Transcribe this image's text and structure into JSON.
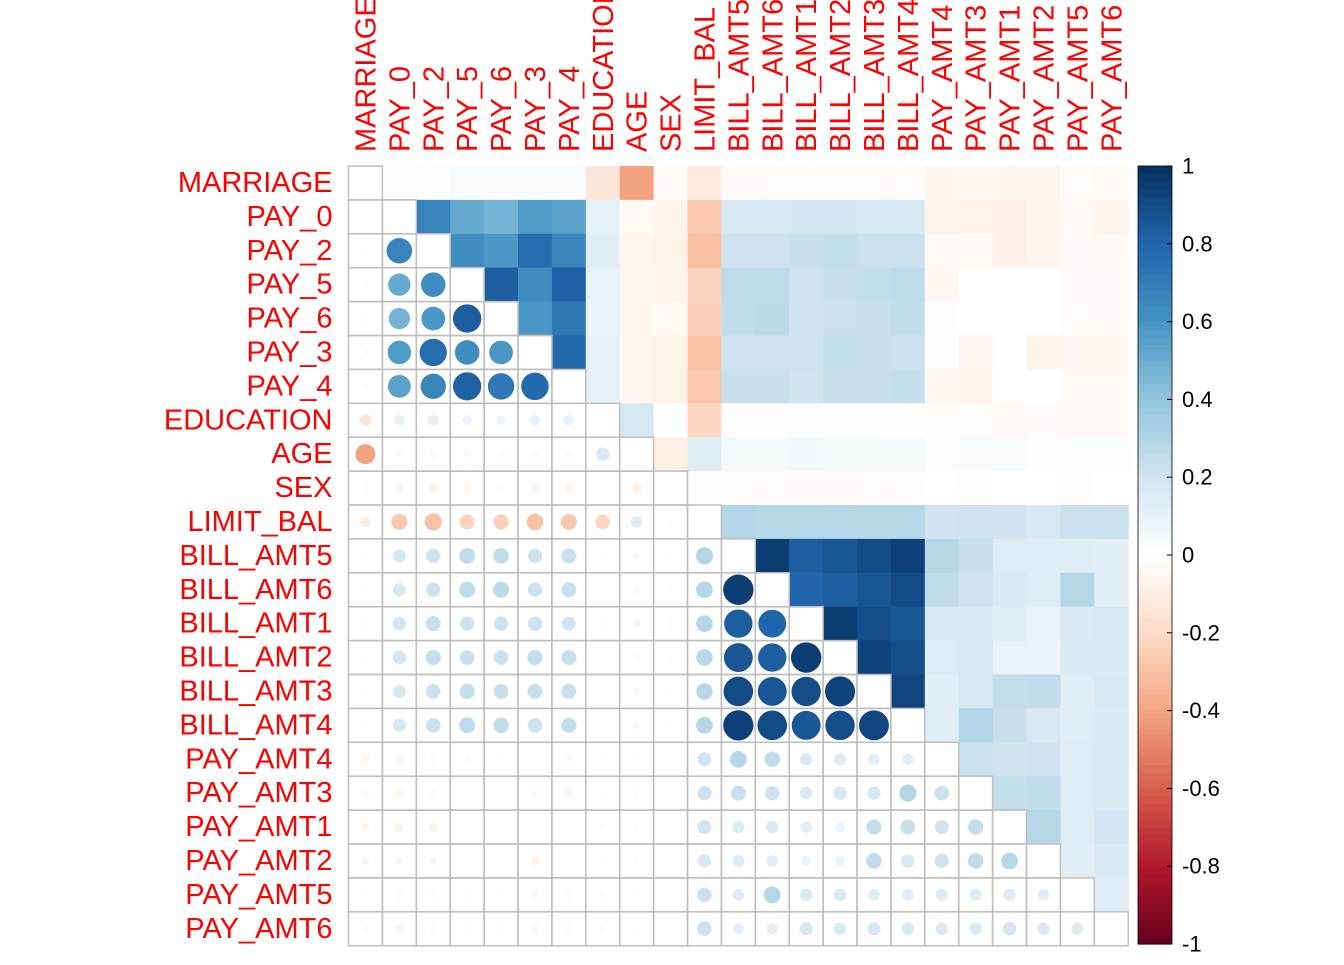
{
  "chart_data": {
    "type": "heatmap",
    "subtype": "correlation matrix: circles below diagonal, filled squares above diagonal",
    "variables": [
      "MARRIAGE",
      "PAY_0",
      "PAY_2",
      "PAY_5",
      "PAY_6",
      "PAY_3",
      "PAY_4",
      "EDUCATION",
      "AGE",
      "SEX",
      "LIMIT_BAL",
      "BILL_AMT5",
      "BILL_AMT6",
      "BILL_AMT1",
      "BILL_AMT2",
      "BILL_AMT3",
      "BILL_AMT4",
      "PAY_AMT4",
      "PAY_AMT3",
      "PAY_AMT1",
      "PAY_AMT2",
      "PAY_AMT5",
      "PAY_AMT6"
    ],
    "column_labels": [
      "MARRIAGE",
      "PAY_0",
      "PAY_2",
      "PAY_5",
      "PAY_6",
      "PAY_3",
      "PAY_4",
      "EDUCATION",
      "AGE",
      "SEX",
      "LIMIT_BAL",
      "BILL_AMT5",
      "BILL_AMT6",
      "BILL_AMT1",
      "BILL_AMT2",
      "BILL_AMT3",
      "BILL_AMT4",
      "PAY_AMT4",
      "PAY_AMT3",
      "PAY_AMT1",
      "PAY_AMT2",
      "PAY_AMT5",
      "PAY_AMT6"
    ],
    "lower_triangle": [
      [],
      [
        0.01
      ],
      [
        0.02,
        0.67
      ],
      [
        0.03,
        0.51,
        0.62
      ],
      [
        0.03,
        0.47,
        0.58,
        0.83
      ],
      [
        0.03,
        0.57,
        0.77,
        0.62,
        0.58
      ],
      [
        0.03,
        0.54,
        0.66,
        0.82,
        0.72,
        0.78
      ],
      [
        -0.14,
        0.11,
        0.12,
        0.1,
        0.09,
        0.11,
        0.11
      ],
      [
        -0.41,
        -0.04,
        -0.05,
        -0.05,
        -0.05,
        -0.05,
        -0.05,
        0.18
      ],
      [
        -0.03,
        -0.06,
        -0.07,
        -0.06,
        -0.04,
        -0.07,
        -0.07,
        0.01,
        -0.09
      ],
      [
        -0.11,
        -0.27,
        -0.3,
        -0.23,
        -0.24,
        -0.29,
        -0.27,
        -0.22,
        0.14,
        0.02
      ],
      [
        -0.03,
        0.18,
        0.21,
        0.26,
        0.25,
        0.21,
        0.23,
        -0.01,
        0.05,
        -0.02,
        0.3
      ],
      [
        -0.02,
        0.18,
        0.21,
        0.26,
        0.27,
        0.21,
        0.23,
        -0.01,
        0.05,
        -0.02,
        0.29,
        0.95
      ],
      [
        -0.02,
        0.19,
        0.23,
        0.21,
        0.21,
        0.21,
        0.2,
        0.02,
        0.06,
        -0.03,
        0.29,
        0.83,
        0.8
      ],
      [
        -0.02,
        0.19,
        0.24,
        0.23,
        0.22,
        0.24,
        0.23,
        0.01,
        0.05,
        -0.03,
        0.28,
        0.86,
        0.83,
        0.95
      ],
      [
        -0.02,
        0.18,
        0.22,
        0.24,
        0.23,
        0.23,
        0.23,
        0.01,
        0.05,
        -0.02,
        0.28,
        0.9,
        0.86,
        0.89,
        0.93
      ],
      [
        -0.02,
        0.18,
        0.22,
        0.26,
        0.25,
        0.22,
        0.24,
        -0.01,
        0.05,
        -0.02,
        0.29,
        0.94,
        0.9,
        0.86,
        0.89,
        0.92
      ],
      [
        -0.06,
        -0.06,
        -0.04,
        -0.05,
        0.02,
        -0.01,
        -0.05,
        -0.02,
        0.02,
        -0.0,
        0.2,
        0.29,
        0.25,
        0.16,
        0.15,
        0.13,
        0.13
      ],
      [
        -0.05,
        -0.07,
        -0.04,
        0.0,
        0.0,
        -0.05,
        -0.07,
        -0.02,
        0.03,
        -0.01,
        0.21,
        0.23,
        0.21,
        0.16,
        0.18,
        0.18,
        0.3,
        0.22
      ],
      [
        -0.06,
        -0.08,
        -0.08,
        0.0,
        0.0,
        -0.0,
        -0.0,
        -0.04,
        0.03,
        -0.0,
        0.2,
        0.15,
        0.16,
        0.14,
        0.1,
        0.24,
        0.23,
        0.2,
        0.24
      ],
      [
        -0.06,
        -0.06,
        -0.06,
        0.0,
        0.0,
        -0.07,
        -0.0,
        -0.03,
        0.02,
        -0.0,
        0.18,
        0.15,
        0.14,
        0.1,
        0.09,
        0.25,
        0.18,
        0.21,
        0.25,
        0.29
      ],
      [
        -0.02,
        -0.04,
        -0.03,
        -0.03,
        -0.02,
        -0.05,
        -0.04,
        -0.04,
        0.02,
        -0.01,
        0.22,
        0.14,
        0.29,
        0.16,
        0.16,
        0.14,
        0.14,
        0.15,
        0.15,
        0.15,
        0.13
      ],
      [
        -0.04,
        -0.06,
        -0.04,
        -0.03,
        -0.03,
        -0.05,
        -0.04,
        -0.04,
        0.02,
        -0.0,
        0.22,
        0.12,
        0.12,
        0.18,
        0.16,
        0.18,
        0.16,
        0.16,
        0.16,
        0.19,
        0.16,
        0.15
      ]
    ],
    "colorbar": {
      "ticks": [
        "1",
        "0.8",
        "0.6",
        "0.4",
        "0.2",
        "0",
        "-0.2",
        "-0.4",
        "-0.6",
        "-0.8",
        "-1"
      ],
      "range": [
        -1,
        1
      ]
    },
    "colors": {
      "label": "#ff0000",
      "grid": "#bebebe",
      "diverging": [
        "#67001f",
        "#b2182b",
        "#d6604d",
        "#f4a582",
        "#fddbc7",
        "#ffffff",
        "#d1e5f0",
        "#92c5de",
        "#4393c3",
        "#2166ac",
        "#053061"
      ]
    },
    "legend_position": "right"
  }
}
